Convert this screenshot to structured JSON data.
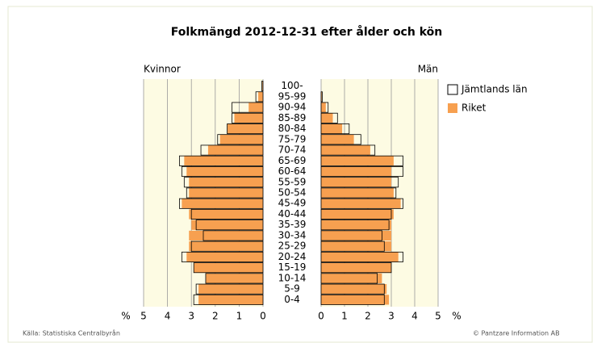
{
  "chart_data": {
    "type": "population_pyramid",
    "title": "Folkmängd 2012-12-31 efter ålder och kön",
    "left_label": "Kvinnor",
    "right_label": "Män",
    "categories": [
      "0-4",
      "5-9",
      "10-14",
      "15-19",
      "20-24",
      "25-29",
      "30-34",
      "35-39",
      "40-44",
      "45-49",
      "50-54",
      "55-59",
      "60-64",
      "65-69",
      "70-74",
      "75-79",
      "80-84",
      "85-89",
      "90-94",
      "95-99",
      "100-"
    ],
    "series": [
      {
        "name": "Riket",
        "color": "#f7a050",
        "women": [
          2.7,
          2.7,
          2.4,
          2.9,
          3.2,
          3.1,
          3.1,
          3.0,
          3.1,
          3.4,
          3.1,
          3.1,
          3.2,
          3.3,
          2.3,
          1.8,
          1.5,
          1.2,
          0.6,
          0.2,
          0.03
        ],
        "men": [
          2.9,
          2.8,
          2.6,
          3.0,
          3.3,
          3.0,
          3.0,
          3.0,
          3.1,
          3.4,
          3.1,
          3.0,
          3.0,
          3.1,
          2.1,
          1.4,
          0.9,
          0.5,
          0.2,
          0.03,
          0
        ]
      },
      {
        "name": "Jämtlands län",
        "color": "#000000",
        "women": [
          2.9,
          2.8,
          2.4,
          2.9,
          3.4,
          3.0,
          2.5,
          2.8,
          3.0,
          3.5,
          3.2,
          3.3,
          3.4,
          3.5,
          2.6,
          1.9,
          1.5,
          1.3,
          1.3,
          0.3,
          0.05
        ],
        "men": [
          2.7,
          2.7,
          2.4,
          3.0,
          3.5,
          2.7,
          2.6,
          2.9,
          3.0,
          3.5,
          3.2,
          3.3,
          3.5,
          3.5,
          2.3,
          1.7,
          1.2,
          0.7,
          0.3,
          0.05,
          0
        ]
      }
    ],
    "xlim": [
      0,
      5
    ],
    "xticks": [
      0,
      1,
      2,
      3,
      4,
      5
    ],
    "axis_unit": "%",
    "grid": true,
    "source": "Källa: Statistiska Centralbyrån",
    "credit": "© Pantzare Information AB"
  }
}
